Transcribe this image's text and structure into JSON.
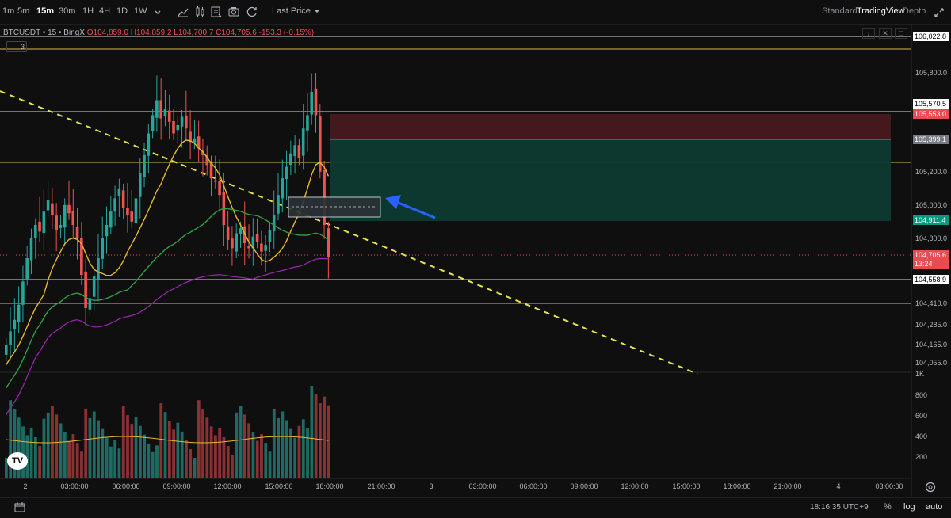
{
  "toolbar": {
    "timeframes": [
      "1m",
      "5m",
      "15m",
      "30m",
      "1H",
      "4H",
      "1D",
      "1W"
    ],
    "active_timeframe": "15m",
    "dropdown_icon": "chevron-down-icon",
    "icons": [
      "candles-icon",
      "indicators-icon",
      "compare-icon",
      "screenshot-icon",
      "replay-icon"
    ],
    "price_source": "Last Price",
    "views": [
      "Standard",
      "TradingView",
      "Depth"
    ],
    "active_view": "TradingView",
    "expand_icon": "expand-icon"
  },
  "legend": {
    "symbol": "BTCUSDT • 15 • BingX",
    "open": "O104,859.0",
    "high": "H104,859.2",
    "low": "L104,700.7",
    "close": "C104,705.6",
    "change": "-153.3 (-0.15%)",
    "indicators_count": "3"
  },
  "price_axis": {
    "ticks": [
      "105,800.0",
      "105,200.0",
      "105,000.0",
      "104,800.0",
      "104,410.0",
      "104,285.0",
      "104,165.0",
      "104,055.0"
    ],
    "labels": {
      "top": "106,022.8",
      "line_105570": "105,570.5",
      "sl": "105,553.0",
      "entry": "105,399.1",
      "tp": "104,911.4",
      "current": "104,705.6",
      "countdown": "13:24",
      "line_104558": "104,558.9"
    }
  },
  "volume_axis": {
    "ticks": [
      "1K",
      "800",
      "600",
      "400",
      "200"
    ]
  },
  "time_axis": [
    "2",
    "03:00:00",
    "06:00:00",
    "09:00:00",
    "12:00:00",
    "15:00:00",
    "18:00:00",
    "21:00:00",
    "3",
    "03:00:00",
    "06:00:00",
    "09:00:00",
    "12:00:00",
    "15:00:00",
    "18:00:00",
    "21:00:00",
    "4",
    "03:00:00"
  ],
  "bottom": {
    "clock": "18:16:35 UTC+9",
    "percent": "%",
    "log": "log",
    "auto": "auto"
  },
  "colors": {
    "up": "#26a69a",
    "down": "#ef5350",
    "ma_fast": "#e8b82a",
    "ma_mid": "#2ea043",
    "ma_slow": "#9c27b0",
    "trendline": "#e6e34a",
    "arrow": "#2962ff"
  },
  "chart_data": {
    "type": "candlestick",
    "candles_close": [
      104180,
      104260,
      104330,
      104420,
      104560,
      104700,
      104820,
      104900,
      104860,
      104980,
      105050,
      104960,
      104870,
      104900,
      105020,
      104970,
      104900,
      104820,
      104600,
      104400,
      104460,
      104590,
      104700,
      104820,
      104900,
      104980,
      105060,
      105120,
      105000,
      104960,
      104920,
      105060,
      105210,
      105320,
      105450,
      105560,
      105650,
      105540,
      105600,
      105520,
      105450,
      105500,
      105550,
      105480,
      105400,
      105420,
      105360,
      105320,
      105260,
      105180,
      105160,
      105080,
      104900,
      104810,
      104760,
      104850,
      104880,
      104790,
      104760,
      104830,
      104800,
      104740,
      104780,
      104870,
      104960,
      105080,
      105180,
      105250,
      105330,
      105380,
      105300,
      105480,
      105560,
      105700,
      105560,
      105220,
      104900,
      104706
    ],
    "ma_fast_last": 105220,
    "ma_mid_last": 104880,
    "ma_slow_last": 104540,
    "volume_ylim": [
      0,
      1000
    ]
  }
}
